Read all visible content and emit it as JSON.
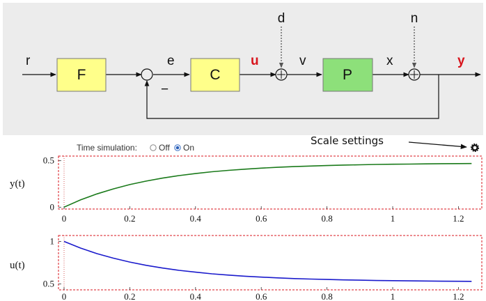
{
  "diagram": {
    "signals": {
      "r": "r",
      "e": "e",
      "u": "u",
      "v": "v",
      "x": "x",
      "y": "y",
      "d": "d",
      "n": "n"
    },
    "feedback_sign": "−",
    "blocks": {
      "F": "F",
      "C": "C",
      "P": "P"
    },
    "colors": {
      "panel_bg": "#ececec",
      "block_yellow": "#ffff8a",
      "block_green": "#8de07a",
      "highlight_red": "#d8141c"
    }
  },
  "toolbar": {
    "time_simulation_label": "Time simulation:",
    "options": [
      {
        "label": "Off",
        "selected": false
      },
      {
        "label": "On",
        "selected": true
      }
    ],
    "scale_settings_label": "Scale settings",
    "scale_settings_icon": "gear-icon"
  },
  "chart_data": [
    {
      "type": "line",
      "ylabel": "y(t)",
      "xlim": [
        0,
        1.25
      ],
      "ylim": [
        -0.02,
        0.55
      ],
      "xticks": [
        0,
        0.2,
        0.4,
        0.6,
        0.8,
        1,
        1.2
      ],
      "xtick_labels": [
        "0",
        "0.2",
        "0.4",
        "0.6",
        "0.8",
        "1",
        "1.2"
      ],
      "yticks": [
        0,
        0.5
      ],
      "ytick_labels": [
        "0",
        "0.5"
      ],
      "series": [
        {
          "color": "#1a7a1a",
          "x": [
            0,
            0.05,
            0.1,
            0.15,
            0.2,
            0.25,
            0.3,
            0.35,
            0.4,
            0.45,
            0.5,
            0.55,
            0.6,
            0.65,
            0.7,
            0.75,
            0.8,
            0.85,
            0.9,
            0.95,
            1.0,
            1.05,
            1.1,
            1.15,
            1.2,
            1.24
          ],
          "y": [
            0,
            0.078,
            0.143,
            0.197,
            0.243,
            0.281,
            0.313,
            0.34,
            0.362,
            0.381,
            0.396,
            0.409,
            0.42,
            0.429,
            0.437,
            0.443,
            0.448,
            0.453,
            0.456,
            0.46,
            0.462,
            0.464,
            0.466,
            0.468,
            0.469,
            0.47
          ]
        }
      ],
      "border_color": "#d8141c",
      "grid": false
    },
    {
      "type": "line",
      "ylabel": "u(t)",
      "xlim": [
        0,
        1.25
      ],
      "ylim": [
        0.43,
        1.07
      ],
      "xticks": [
        0,
        0.2,
        0.4,
        0.6,
        0.8,
        1,
        1.2
      ],
      "xtick_labels": [
        "0",
        "0.2",
        "0.4",
        "0.6",
        "0.8",
        "1",
        "1.2"
      ],
      "yticks": [
        0.5,
        1
      ],
      "ytick_labels": [
        "0.5",
        "1"
      ],
      "series": [
        {
          "color": "#1a1acc",
          "x": [
            0,
            0.05,
            0.1,
            0.15,
            0.2,
            0.25,
            0.3,
            0.35,
            0.4,
            0.45,
            0.5,
            0.55,
            0.6,
            0.65,
            0.7,
            0.75,
            0.8,
            0.85,
            0.9,
            0.95,
            1.0,
            1.05,
            1.1,
            1.15,
            1.2,
            1.24
          ],
          "y": [
            1.0,
            0.922,
            0.857,
            0.803,
            0.757,
            0.719,
            0.687,
            0.66,
            0.638,
            0.619,
            0.604,
            0.591,
            0.58,
            0.571,
            0.563,
            0.557,
            0.552,
            0.547,
            0.544,
            0.54,
            0.538,
            0.536,
            0.534,
            0.532,
            0.531,
            0.53
          ]
        }
      ],
      "border_color": "#d8141c",
      "grid": false
    }
  ]
}
